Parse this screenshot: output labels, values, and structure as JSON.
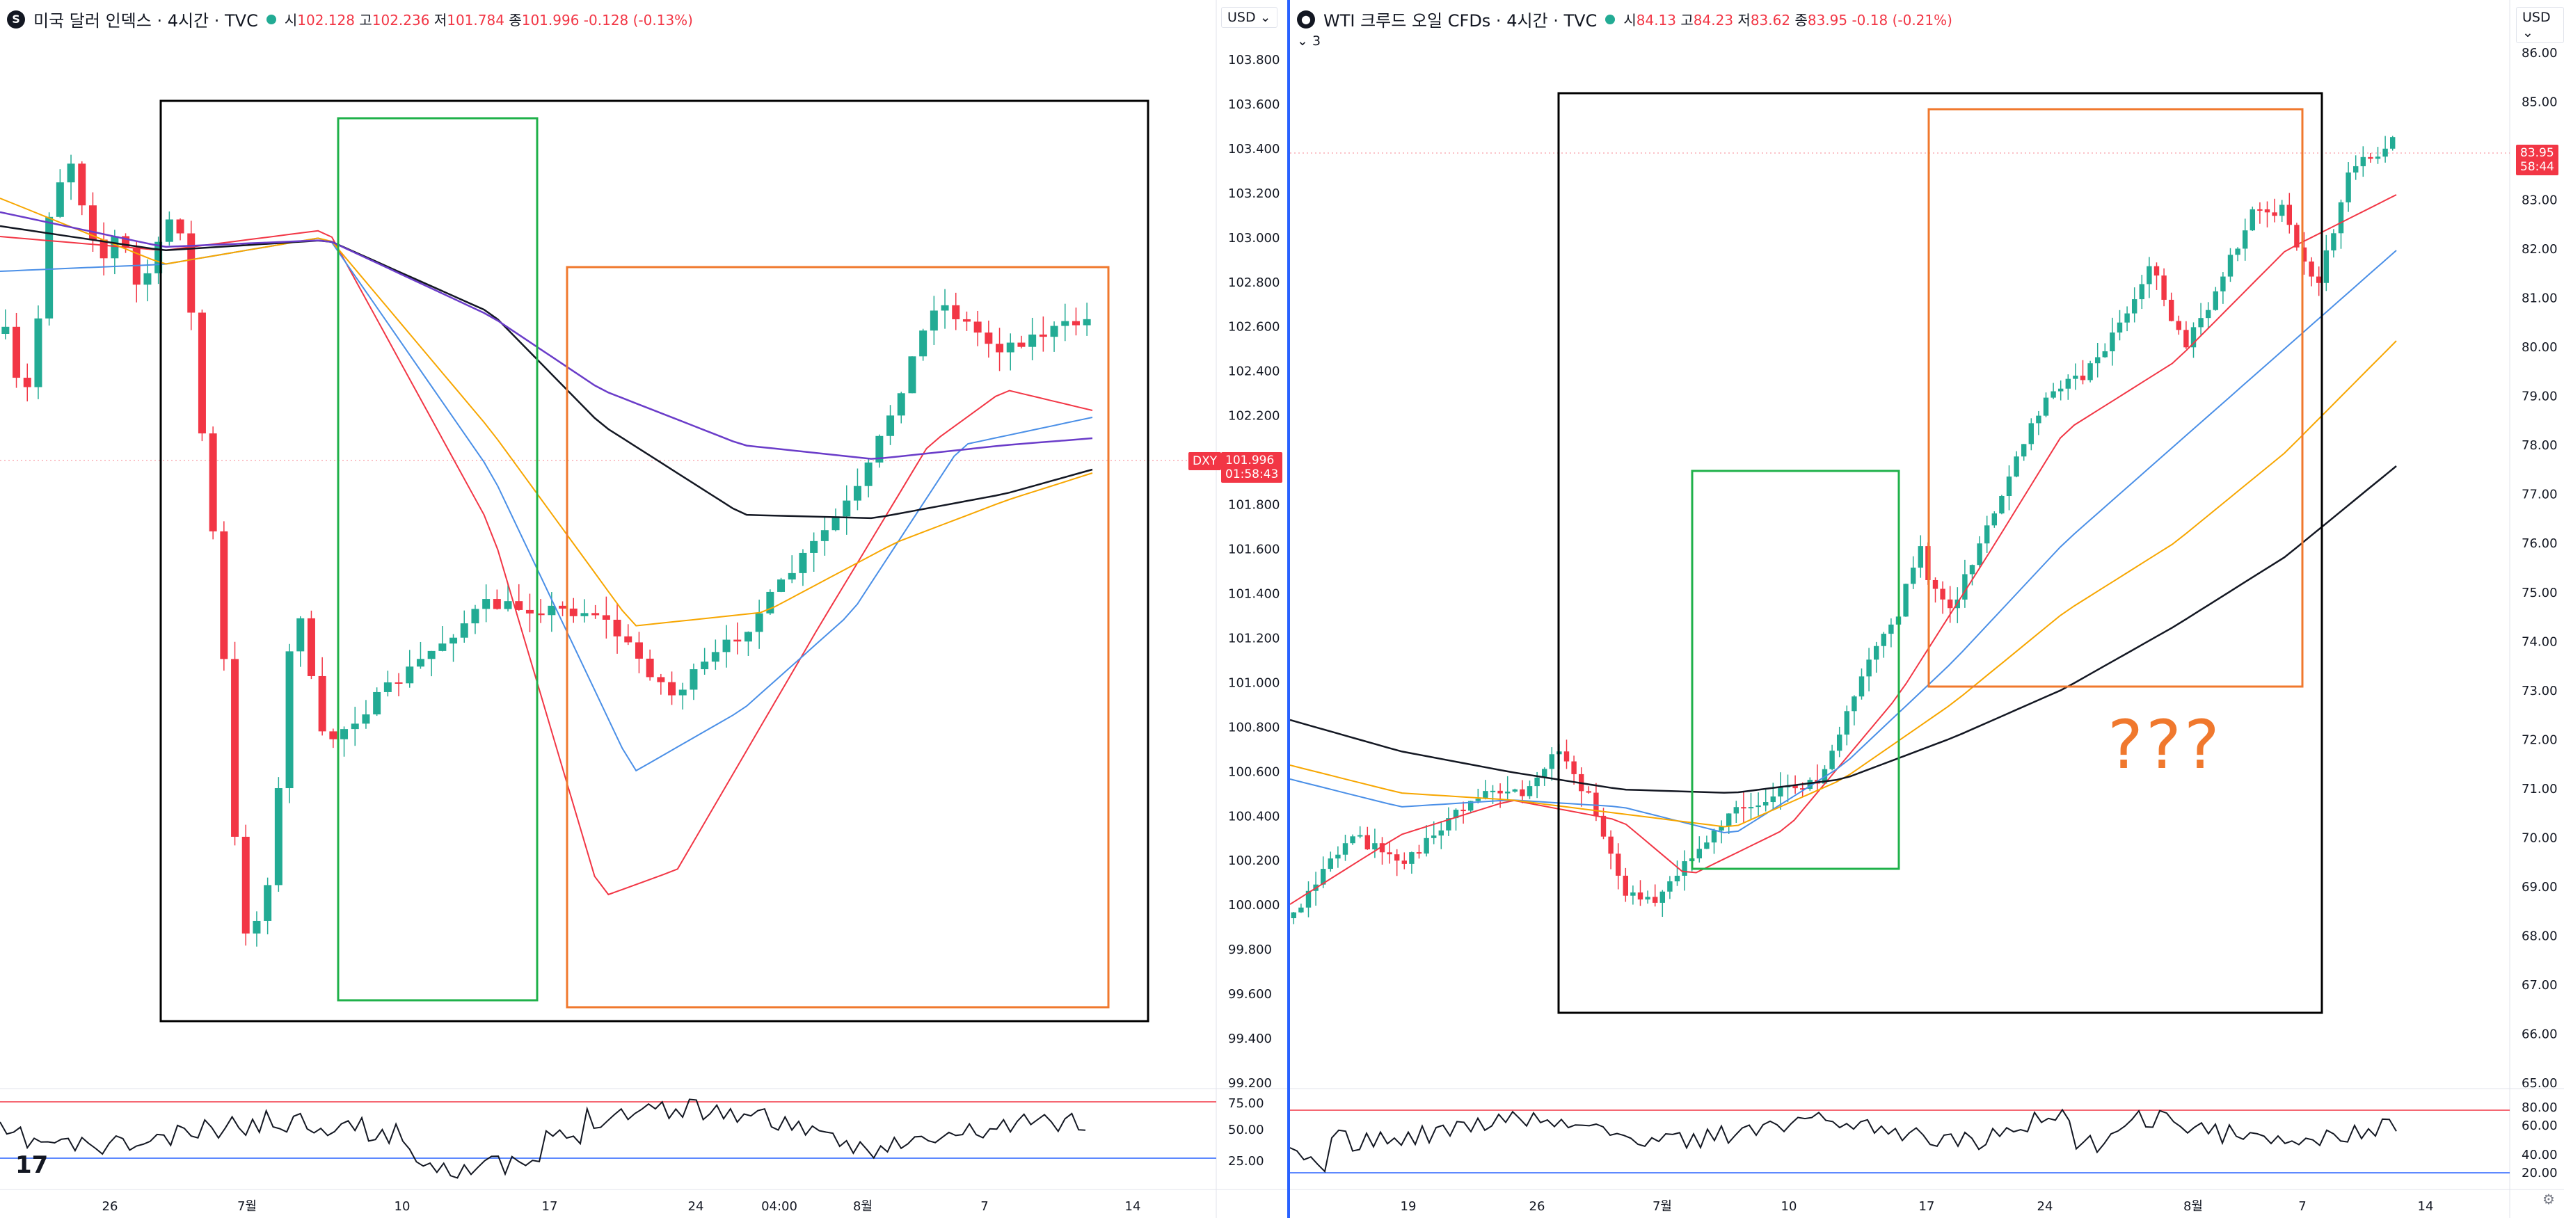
{
  "left_chart": {
    "symbol_icon": "S",
    "title": "미국 달러 인덱스 · 4시간 · TVC",
    "ohlc": {
      "o_label": "시",
      "o": "102.128",
      "h_label": "고",
      "h": "102.236",
      "l_label": "저",
      "l": "101.784",
      "c_label": "종",
      "c": "101.996",
      "chg": "-0.128 (-0.13%)"
    },
    "currency": "USD",
    "price_ticks": [
      "103.800",
      "103.600",
      "103.400",
      "103.200",
      "103.000",
      "102.800",
      "102.600",
      "102.400",
      "102.200",
      "102.000",
      "101.800",
      "101.600",
      "101.400",
      "101.200",
      "101.000",
      "100.800",
      "100.600",
      "100.400",
      "100.200",
      "100.000",
      "99.800",
      "99.600",
      "99.400",
      "99.200"
    ],
    "rsi_ticks": [
      "75.00",
      "50.00",
      "25.00"
    ],
    "time_ticks": [
      "26",
      "7월",
      "10",
      "17",
      "24",
      "04:00",
      "8월",
      "7",
      "14"
    ],
    "symbol_tag": "DXY",
    "last_price": "101.996",
    "countdown": "01:58:43",
    "logo": "17"
  },
  "right_chart": {
    "symbol_icon": "●",
    "title": "WTI 크루드 오일 CFDs · 4시간 · TVC",
    "ohlc": {
      "o_label": "시",
      "o": "84.13",
      "h_label": "고",
      "h": "84.23",
      "l_label": "저",
      "l": "83.62",
      "c_label": "종",
      "c": "83.95",
      "chg": "-0.18 (-0.21%)"
    },
    "currency": "USD",
    "collapse_label": "⌄ 3",
    "price_ticks": [
      "86.00",
      "85.00",
      "84.00",
      "83.00",
      "82.00",
      "81.00",
      "80.00",
      "79.00",
      "78.00",
      "77.00",
      "76.00",
      "75.00",
      "74.00",
      "73.00",
      "72.00",
      "71.00",
      "70.00",
      "69.00",
      "68.00",
      "67.00",
      "66.00",
      "65.00"
    ],
    "rsi_ticks": [
      "80.00",
      "60.00",
      "40.00",
      "20.00"
    ],
    "time_ticks": [
      "19",
      "26",
      "7월",
      "10",
      "17",
      "24",
      "8월",
      "7",
      "14"
    ],
    "last_price": "83.95",
    "countdown": "58:44",
    "annotation": "???"
  },
  "colors": {
    "up": "#22ab94",
    "down": "#f23645",
    "ma_red": "#f23645",
    "ma_blue": "#4a8fe7",
    "ma_orange": "#f7a600",
    "ma_black": "#131722",
    "ma_purple": "#6a3cc9",
    "box_black": "#000000",
    "box_green": "#1fb14a",
    "box_orange": "#f0782d",
    "rsi_line": "#131722",
    "rsi_upper": "#f23645",
    "rsi_lower": "#2962ff"
  }
}
